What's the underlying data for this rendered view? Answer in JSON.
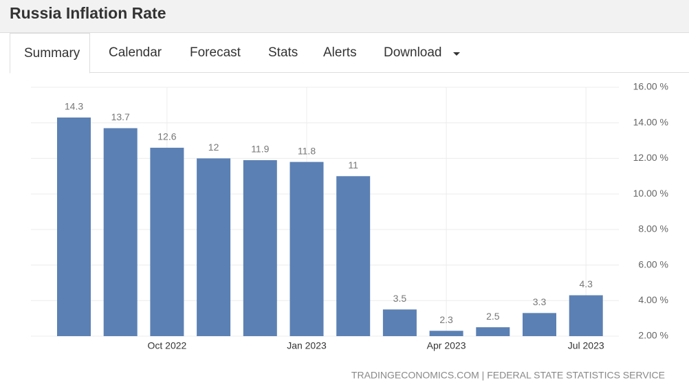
{
  "header": {
    "title": "Russia Inflation Rate"
  },
  "tabs": [
    "Summary",
    "Calendar",
    "Forecast",
    "Stats",
    "Alerts",
    "Download"
  ],
  "chart_data": {
    "type": "bar",
    "categories": [
      null,
      null,
      "Oct 2022",
      null,
      null,
      "Jan 2023",
      null,
      null,
      "Apr 2023",
      null,
      null,
      "Jul 2023"
    ],
    "values": [
      14.3,
      13.7,
      12.6,
      12,
      11.9,
      11.8,
      11,
      3.5,
      2.3,
      2.5,
      3.3,
      4.3
    ],
    "color": "#5b80b4",
    "ylim": [
      2,
      16
    ],
    "yticks": [
      {
        "value": 2,
        "label": "2.00 %"
      },
      {
        "value": 4,
        "label": "4.00 %"
      },
      {
        "value": 6,
        "label": "6.00 %"
      },
      {
        "value": 8,
        "label": "8.00 %"
      },
      {
        "value": 10,
        "label": "10.00 %"
      },
      {
        "value": 12,
        "label": "12.00 %"
      },
      {
        "value": 14,
        "label": "14.00 %"
      },
      {
        "value": 16,
        "label": "16.00 %"
      }
    ],
    "grid": true
  },
  "source": "TRADINGECONOMICS.COM | FEDERAL STATE STATISTICS SERVICE"
}
